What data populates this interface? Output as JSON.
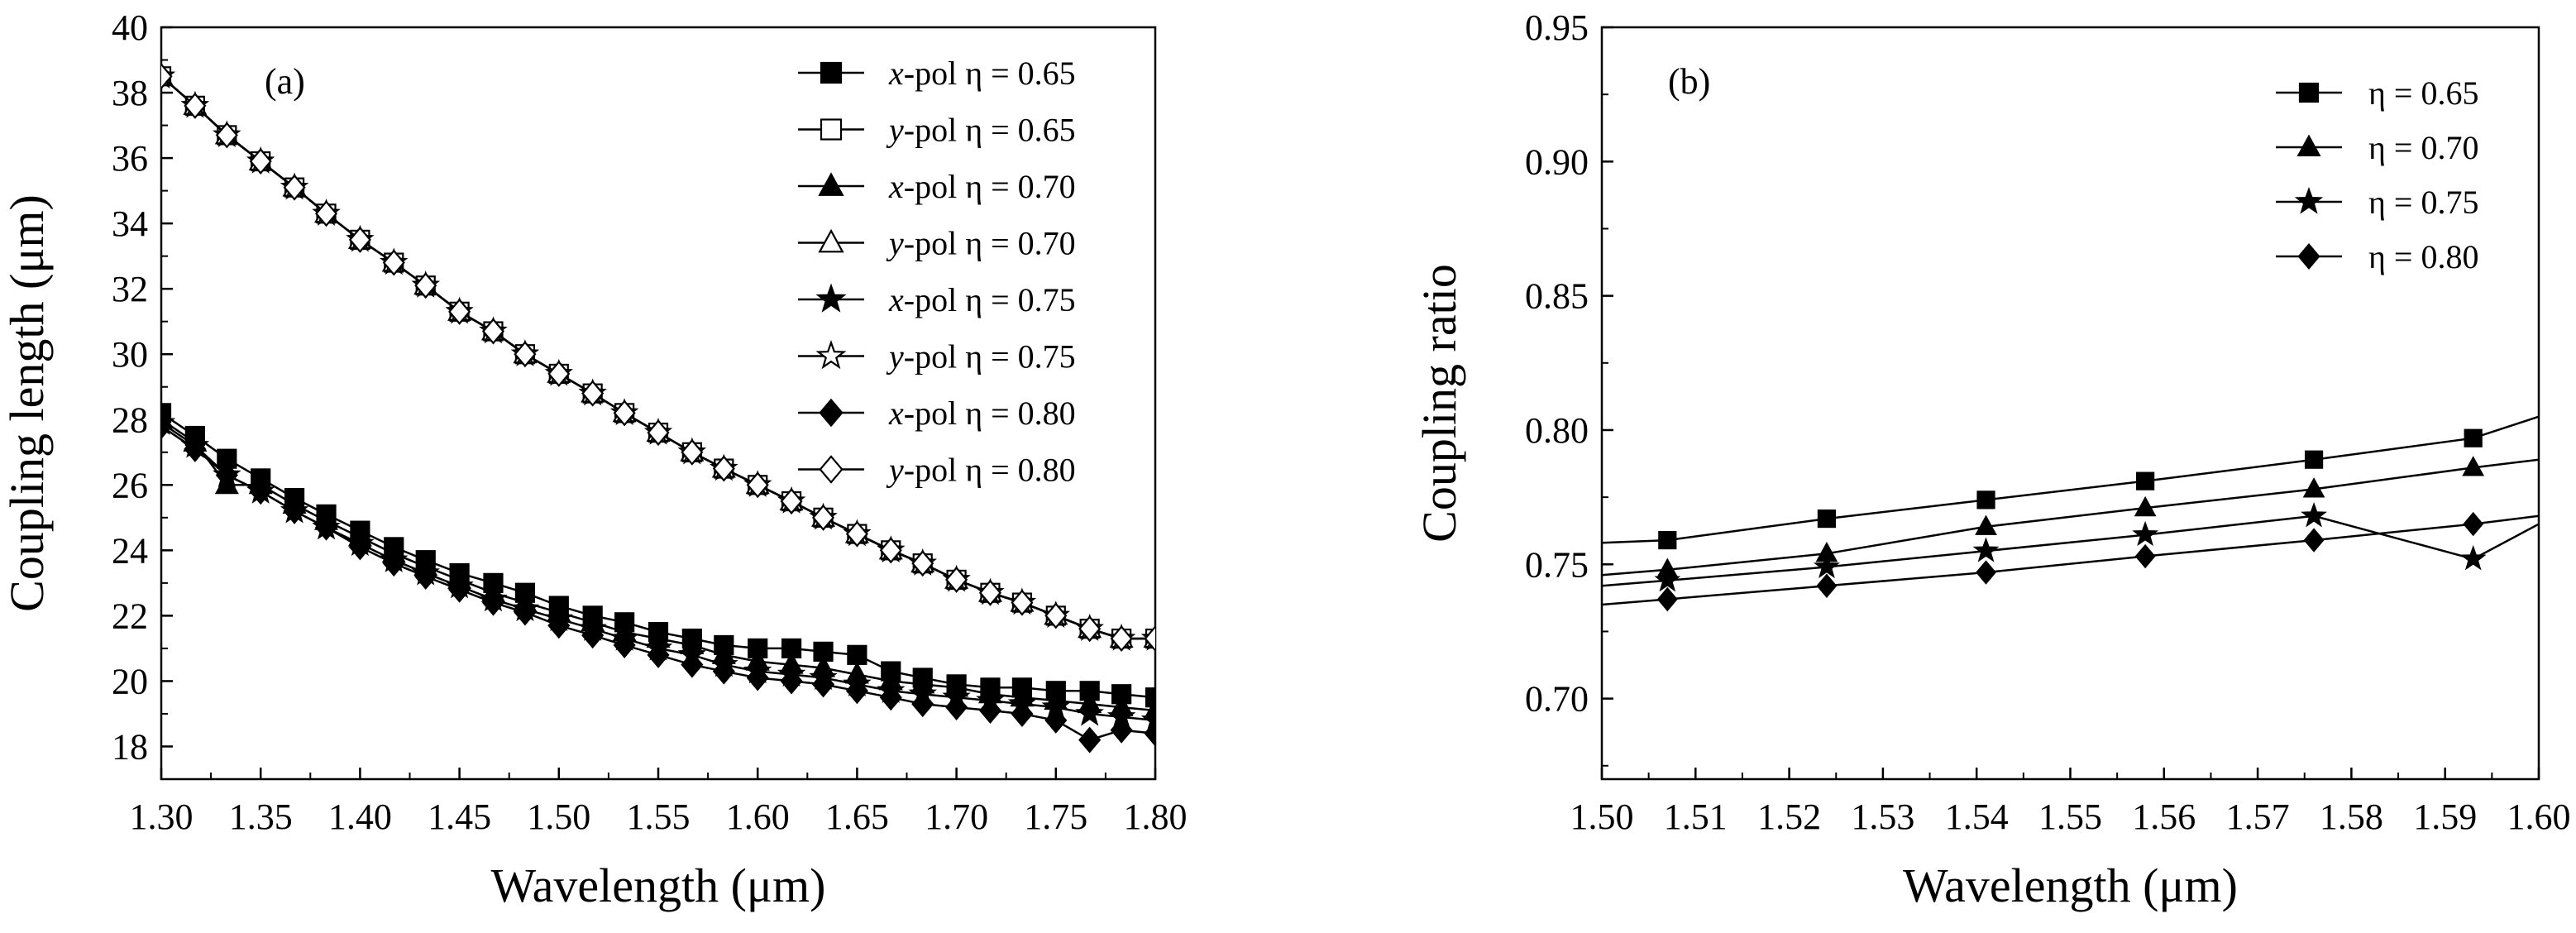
{
  "chart_data": [
    {
      "type": "line",
      "panel_label": "(a)",
      "xlabel": "Wavelength (μm)",
      "ylabel": "Coupling length (μm)",
      "xlim": [
        1.3,
        1.8
      ],
      "ylim": [
        17,
        40
      ],
      "xticks": [
        1.3,
        1.35,
        1.4,
        1.45,
        1.5,
        1.55,
        1.6,
        1.65,
        1.7,
        1.75,
        1.8
      ],
      "xtick_labels": [
        "1.30",
        "1.35",
        "1.40",
        "1.45",
        "1.50",
        "1.55",
        "1.60",
        "1.65",
        "1.70",
        "1.75",
        "1.80"
      ],
      "yticks": [
        18,
        20,
        22,
        24,
        26,
        28,
        30,
        32,
        34,
        36,
        38,
        40
      ],
      "ytick_labels": [
        "18",
        "20",
        "22",
        "24",
        "26",
        "28",
        "30",
        "32",
        "34",
        "36",
        "38",
        "40"
      ],
      "legend_position": "top-right",
      "x": [
        1.3,
        1.317,
        1.333,
        1.35,
        1.367,
        1.383,
        1.4,
        1.417,
        1.433,
        1.45,
        1.467,
        1.483,
        1.5,
        1.517,
        1.533,
        1.55,
        1.567,
        1.583,
        1.6,
        1.617,
        1.633,
        1.65,
        1.667,
        1.683,
        1.7,
        1.717,
        1.733,
        1.75,
        1.767,
        1.783,
        1.8
      ],
      "series": [
        {
          "name": "x-pol η = 0.65",
          "pol": "x",
          "eta_text": "-pol η = 0.65",
          "marker": "square",
          "filled": true,
          "values": [
            28.2,
            27.5,
            26.8,
            26.2,
            25.6,
            25.1,
            24.6,
            24.1,
            23.7,
            23.3,
            23.0,
            22.7,
            22.3,
            22.0,
            21.8,
            21.5,
            21.3,
            21.1,
            21.0,
            21.0,
            20.9,
            20.8,
            20.3,
            20.1,
            19.9,
            19.8,
            19.8,
            19.7,
            19.7,
            19.6,
            19.5
          ]
        },
        {
          "name": "y-pol η = 0.65",
          "pol": "y",
          "eta_text": "-pol η = 0.65",
          "marker": "square",
          "filled": false,
          "values": [
            38.5,
            37.6,
            36.7,
            35.9,
            35.1,
            34.3,
            33.5,
            32.8,
            32.1,
            31.3,
            30.7,
            30.0,
            29.4,
            28.8,
            28.2,
            27.6,
            27.0,
            26.5,
            26.0,
            25.5,
            25.0,
            24.5,
            24.0,
            23.6,
            23.1,
            22.7,
            22.4,
            22.0,
            21.6,
            21.3,
            21.3
          ]
        },
        {
          "name": "x-pol η = 0.70",
          "pol": "x",
          "eta_text": "-pol η = 0.70",
          "marker": "triangle",
          "filled": true,
          "values": [
            28.0,
            27.3,
            26.0,
            26.0,
            25.4,
            24.9,
            24.4,
            23.9,
            23.5,
            23.1,
            22.7,
            22.4,
            22.1,
            21.8,
            21.5,
            21.3,
            21.1,
            20.8,
            20.6,
            20.5,
            20.4,
            20.2,
            20.0,
            19.9,
            19.8,
            19.6,
            19.5,
            19.4,
            19.3,
            19.2,
            19.1
          ]
        },
        {
          "name": "y-pol η = 0.70",
          "pol": "y",
          "eta_text": "-pol η = 0.70",
          "marker": "triangle",
          "filled": false,
          "values": [
            38.5,
            37.6,
            36.7,
            35.9,
            35.1,
            34.3,
            33.5,
            32.8,
            32.1,
            31.3,
            30.7,
            30.0,
            29.4,
            28.8,
            28.2,
            27.6,
            27.0,
            26.5,
            26.0,
            25.5,
            25.0,
            24.5,
            24.0,
            23.6,
            23.1,
            22.7,
            22.4,
            22.0,
            21.6,
            21.3,
            21.3
          ]
        },
        {
          "name": "x-pol η = 0.75",
          "pol": "x",
          "eta_text": "-pol η = 0.75",
          "marker": "star",
          "filled": true,
          "values": [
            27.9,
            27.2,
            26.3,
            25.8,
            25.2,
            24.7,
            24.2,
            23.7,
            23.3,
            22.9,
            22.5,
            22.2,
            21.9,
            21.6,
            21.3,
            21.0,
            20.8,
            20.5,
            20.3,
            20.2,
            20.1,
            19.9,
            19.7,
            19.6,
            19.5,
            19.4,
            19.3,
            19.2,
            19.0,
            18.9,
            18.8
          ]
        },
        {
          "name": "y-pol η = 0.75",
          "pol": "y",
          "eta_text": "-pol η = 0.75",
          "marker": "star",
          "filled": false,
          "values": [
            38.5,
            37.6,
            36.7,
            35.9,
            35.1,
            34.3,
            33.5,
            32.8,
            32.1,
            31.3,
            30.7,
            30.0,
            29.4,
            28.8,
            28.2,
            27.6,
            27.0,
            26.5,
            26.0,
            25.5,
            25.0,
            24.5,
            24.0,
            23.6,
            23.1,
            22.7,
            22.4,
            22.0,
            21.6,
            21.3,
            21.3
          ]
        },
        {
          "name": "x-pol η = 0.80",
          "pol": "x",
          "eta_text": "-pol η = 0.80",
          "marker": "diamond",
          "filled": true,
          "values": [
            27.8,
            27.1,
            26.3,
            25.8,
            25.2,
            24.7,
            24.1,
            23.6,
            23.2,
            22.8,
            22.4,
            22.1,
            21.7,
            21.4,
            21.1,
            20.8,
            20.5,
            20.3,
            20.1,
            20.0,
            19.9,
            19.7,
            19.5,
            19.3,
            19.2,
            19.1,
            19.0,
            18.8,
            18.2,
            18.5,
            18.4
          ]
        },
        {
          "name": "y-pol η = 0.80",
          "pol": "y",
          "eta_text": "-pol η = 0.80",
          "marker": "diamond",
          "filled": false,
          "values": [
            38.5,
            37.6,
            36.7,
            35.9,
            35.1,
            34.3,
            33.5,
            32.8,
            32.1,
            31.3,
            30.7,
            30.0,
            29.4,
            28.8,
            28.2,
            27.6,
            27.0,
            26.5,
            26.0,
            25.5,
            25.0,
            24.5,
            24.0,
            23.6,
            23.1,
            22.7,
            22.4,
            22.0,
            21.6,
            21.3,
            21.3
          ]
        }
      ]
    },
    {
      "type": "line",
      "panel_label": "(b)",
      "xlabel": "Wavelength (μm)",
      "ylabel": "Coupling ratio",
      "xlim": [
        1.5,
        1.6
      ],
      "ylim": [
        0.67,
        0.95
      ],
      "xticks": [
        1.5,
        1.51,
        1.52,
        1.53,
        1.54,
        1.55,
        1.56,
        1.57,
        1.58,
        1.59,
        1.6
      ],
      "xtick_labels": [
        "1.50",
        "1.51",
        "1.52",
        "1.53",
        "1.54",
        "1.55",
        "1.56",
        "1.57",
        "1.58",
        "1.59",
        "1.60"
      ],
      "yticks": [
        0.7,
        0.75,
        0.8,
        0.85,
        0.9,
        0.95
      ],
      "ytick_labels": [
        "0.70",
        "0.75",
        "0.80",
        "0.85",
        "0.90",
        "0.95"
      ],
      "legend_position": "top-right",
      "x": [
        1.5,
        1.507,
        1.524,
        1.541,
        1.558,
        1.576,
        1.593,
        1.6
      ],
      "marker_x": [
        1.507,
        1.524,
        1.541,
        1.558,
        1.576,
        1.593
      ],
      "series": [
        {
          "name": "η = 0.65",
          "marker": "square",
          "filled": true,
          "values": [
            0.758,
            0.759,
            0.767,
            0.774,
            0.781,
            0.789,
            0.797,
            0.805
          ]
        },
        {
          "name": "η = 0.70",
          "marker": "triangle",
          "filled": true,
          "values": [
            0.746,
            0.748,
            0.754,
            0.764,
            0.771,
            0.778,
            0.786,
            0.789
          ]
        },
        {
          "name": "η = 0.75",
          "marker": "star",
          "filled": true,
          "values": [
            0.742,
            0.744,
            0.749,
            0.755,
            0.761,
            0.768,
            0.752,
            0.765
          ]
        },
        {
          "name": "η = 0.80",
          "marker": "diamond",
          "filled": true,
          "values": [
            0.735,
            0.737,
            0.742,
            0.747,
            0.753,
            0.759,
            0.765,
            0.768
          ]
        }
      ]
    }
  ]
}
